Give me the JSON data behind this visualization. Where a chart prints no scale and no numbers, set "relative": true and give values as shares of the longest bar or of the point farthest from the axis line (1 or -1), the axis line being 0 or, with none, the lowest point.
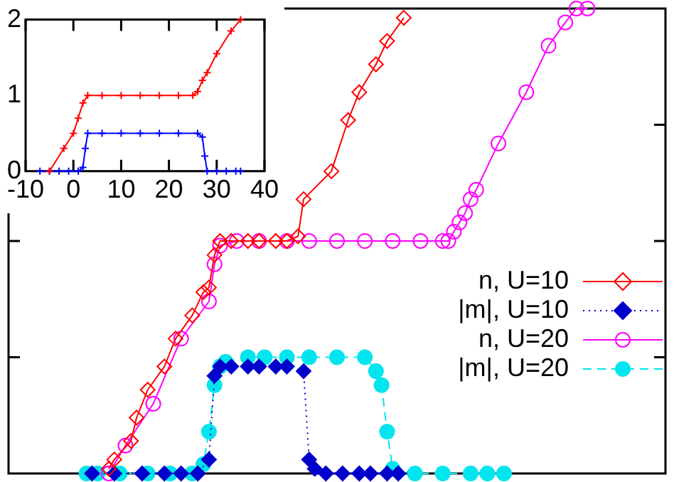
{
  "chart_data": [
    {
      "type": "line",
      "relative": true,
      "tick_labels": false,
      "legend": "right",
      "categories": [
        null,
        null,
        null,
        null,
        null,
        null,
        null,
        null,
        null,
        null,
        null,
        null,
        null,
        null,
        null,
        null,
        null,
        null,
        null,
        null,
        null,
        null,
        null,
        null,
        null,
        null,
        null,
        null,
        null,
        null,
        null,
        null,
        null,
        null,
        null,
        null,
        null,
        null,
        null,
        null,
        null,
        null,
        null,
        null,
        null,
        null,
        null,
        null,
        null,
        null,
        null,
        null,
        null,
        null,
        null,
        null,
        null,
        null,
        null,
        null,
        null,
        null,
        null,
        null,
        null,
        null,
        null,
        null,
        null,
        null,
        null,
        null,
        null,
        null,
        null,
        null,
        null,
        null,
        null,
        null,
        null,
        null,
        null,
        null,
        null,
        null,
        null,
        null,
        null,
        null,
        null,
        null,
        null,
        null,
        null,
        null,
        null,
        null,
        null,
        null,
        null,
        null,
        null,
        null,
        null,
        null,
        null,
        null,
        null,
        null,
        null,
        null,
        null,
        null,
        null,
        null,
        null,
        null,
        null
      ],
      "series": [
        {
          "name": "n, U=10",
          "color": "#ff0000",
          "marker": "diamond",
          "line_style": "solid",
          "values": [
            null,
            null,
            null,
            null,
            null,
            null,
            null,
            null,
            null,
            null,
            null,
            null,
            null,
            null,
            null,
            null,
            null,
            null,
            0.01,
            0.03,
            null,
            null,
            0.07,
            0.12,
            null,
            0.18,
            null,
            null,
            0.23,
            null,
            0.29,
            null,
            null,
            0.34,
            null,
            0.39,
            0.4,
            0.47,
            0.5,
            null,
            0.5,
            null,
            null,
            0.5,
            null,
            0.5,
            null,
            null,
            0.5,
            null,
            0.5,
            null,
            0.51,
            0.59,
            null,
            null,
            null,
            null,
            0.65,
            null,
            null,
            0.76,
            null,
            0.82,
            null,
            null,
            0.88,
            null,
            0.93,
            null,
            null,
            0.98,
            null,
            null,
            null,
            null,
            null,
            null,
            null,
            null,
            null,
            null,
            null,
            null,
            null,
            null,
            null,
            null,
            null,
            null,
            null,
            null,
            null,
            null,
            null,
            null,
            null,
            null,
            null,
            null,
            null,
            null,
            null,
            null,
            null,
            null,
            null,
            null,
            null,
            null,
            null,
            null,
            null,
            null,
            null,
            null,
            null,
            null,
            null
          ]
        },
        {
          "name": "|m|, U=10",
          "color": "#0000cc",
          "marker": "diamond",
          "line_style": "dotted",
          "values": [
            null,
            null,
            null,
            null,
            null,
            null,
            null,
            null,
            null,
            null,
            null,
            null,
            null,
            null,
            null,
            0,
            null,
            null,
            null,
            0,
            null,
            null,
            null,
            null,
            0,
            null,
            null,
            null,
            0,
            null,
            null,
            0,
            null,
            null,
            0,
            null,
            0.03,
            0.21,
            0.23,
            null,
            0.23,
            null,
            null,
            0.23,
            null,
            0.23,
            null,
            null,
            0.23,
            null,
            0.23,
            null,
            null,
            0.22,
            0.03,
            0.01,
            null,
            0,
            null,
            null,
            0,
            null,
            null,
            0,
            null,
            0,
            null,
            null,
            0,
            null,
            0,
            null,
            null,
            null,
            null,
            null,
            null,
            null,
            null,
            null,
            null,
            null,
            null,
            null,
            null,
            null,
            null,
            null,
            null,
            null,
            null,
            null,
            null,
            null,
            null,
            null,
            null,
            null,
            null,
            null,
            null,
            null,
            null,
            null,
            null,
            null,
            null,
            null,
            null,
            null,
            null,
            null,
            null,
            null,
            null,
            null,
            null,
            null,
            null
          ]
        },
        {
          "name": "n, U=20",
          "color": "#ff00ff",
          "marker": "circle",
          "line_style": "solid",
          "values": [
            null,
            null,
            null,
            null,
            null,
            null,
            null,
            null,
            null,
            null,
            null,
            null,
            null,
            null,
            null,
            null,
            null,
            null,
            0,
            null,
            null,
            0.06,
            null,
            null,
            null,
            null,
            0.15,
            null,
            null,
            null,
            null,
            0.29,
            null,
            null,
            null,
            null,
            0.37,
            0.45,
            0.49,
            null,
            null,
            0.5,
            null,
            null,
            null,
            0.5,
            null,
            null,
            null,
            null,
            0.5,
            null,
            null,
            null,
            0.5,
            null,
            null,
            null,
            null,
            0.5,
            null,
            null,
            null,
            null,
            0.5,
            null,
            null,
            null,
            null,
            0.5,
            null,
            null,
            null,
            null,
            0.5,
            null,
            null,
            null,
            0.5,
            0.5,
            0.52,
            0.54,
            0.56,
            0.59,
            0.61,
            null,
            null,
            null,
            0.71,
            null,
            null,
            null,
            null,
            0.82,
            null,
            null,
            null,
            0.92,
            null,
            null,
            0.97,
            null,
            1,
            null,
            1,
            null,
            null,
            null,
            null,
            null,
            null,
            null,
            null,
            null,
            null,
            null,
            null,
            null,
            null
          ]
        },
        {
          "name": "|m|, U=20",
          "color": "#00e5ee",
          "marker": "circle",
          "line_style": "dashed",
          "values": [
            null,
            null,
            null,
            null,
            null,
            null,
            null,
            null,
            null,
            null,
            null,
            null,
            null,
            null,
            0,
            null,
            0,
            null,
            null,
            null,
            0,
            null,
            null,
            null,
            null,
            0,
            null,
            null,
            null,
            0,
            null,
            null,
            null,
            0,
            null,
            0.02,
            0.09,
            0.19,
            0.23,
            0.24,
            null,
            null,
            null,
            0.25,
            null,
            null,
            0.25,
            null,
            null,
            null,
            0.25,
            null,
            null,
            null,
            0.25,
            null,
            null,
            null,
            null,
            0.25,
            null,
            null,
            null,
            null,
            0.25,
            null,
            0.22,
            0.19,
            0.09,
            0.01,
            null,
            null,
            null,
            0,
            null,
            null,
            null,
            null,
            0,
            null,
            null,
            null,
            null,
            0,
            null,
            null,
            0,
            null,
            null,
            0,
            null,
            null,
            null,
            null,
            null,
            null,
            null,
            null,
            null,
            null,
            null,
            null,
            null,
            null,
            null,
            null,
            null,
            null,
            null,
            null,
            null,
            null,
            null,
            null,
            null,
            null,
            null,
            null,
            null
          ]
        }
      ]
    },
    {
      "type": "line",
      "xlim": [
        -10,
        40
      ],
      "xticks": [
        -10,
        0,
        10,
        20,
        30,
        40
      ],
      "ylim": [
        0,
        2
      ],
      "yticks": [
        0,
        1,
        2
      ],
      "series": [
        {
          "color": "#ff0000",
          "marker": "cross",
          "line_style": "solid",
          "x": [
            -5,
            -2,
            0,
            1,
            2,
            3,
            6,
            10,
            14,
            18,
            22,
            25,
            26,
            27,
            28,
            30,
            33,
            35
          ],
          "values": [
            0,
            0.3,
            0.5,
            0.7,
            0.9,
            1,
            1,
            1,
            1,
            1,
            1,
            1,
            1.05,
            1.2,
            1.3,
            1.55,
            1.85,
            2
          ]
        },
        {
          "color": "#0000ff",
          "marker": "cross",
          "line_style": "solid",
          "x": [
            -7,
            -5,
            -3,
            -1,
            1,
            2,
            2.5,
            3,
            6,
            10,
            14,
            18,
            22,
            26,
            27,
            27.5,
            28,
            30,
            32,
            34,
            35
          ],
          "values": [
            0,
            0,
            0,
            0,
            0,
            0.05,
            0.3,
            0.5,
            0.5,
            0.5,
            0.5,
            0.5,
            0.5,
            0.5,
            0.45,
            0.2,
            0,
            0,
            0,
            0,
            0
          ]
        }
      ]
    }
  ]
}
